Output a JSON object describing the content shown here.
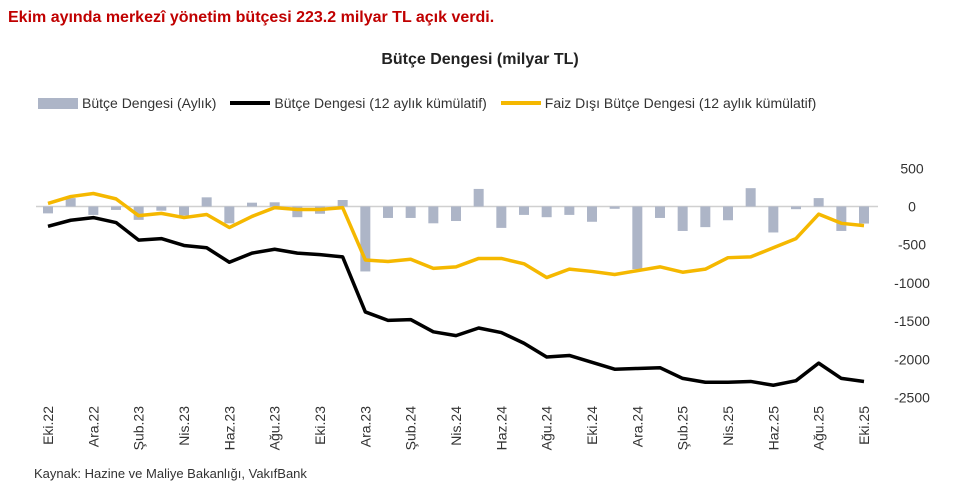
{
  "headline": "Ekim ayında merkezî yönetim bütçesi 223.2 milyar TL açık verdi.",
  "source": "Kaynak: Hazine ve Maliye Bakanlığı, VakıfBank",
  "chart_data": {
    "type": "bar+line",
    "title": "Bütçe Dengesi (milyar TL)",
    "xlabel": "",
    "ylabel": "",
    "ylim": [
      -2500,
      500
    ],
    "yticks": [
      500,
      0,
      -500,
      -1000,
      -1500,
      -2000,
      -2500
    ],
    "legend_position": "top",
    "colors": {
      "monthly": "#adb5c7",
      "cumulative": "#000000",
      "primary": "#f5b800"
    },
    "months": [
      "Eki.22",
      "Kas.22",
      "Ara.22",
      "Oca.23",
      "Şub.23",
      "Mar.23",
      "Nis.23",
      "May.23",
      "Haz.23",
      "Tem.23",
      "Ağu.23",
      "Eyl.23",
      "Eki.23",
      "Kas.23",
      "Ara.23",
      "Oca.24",
      "Şub.24",
      "Mar.24",
      "Nis.24",
      "May.24",
      "Haz.24",
      "Tem.24",
      "Ağu.24",
      "Eyl.24",
      "Eki.24",
      "Kas.24",
      "Ara.24",
      "Oca.25",
      "Şub.25",
      "Mar.25",
      "Nis.25",
      "May.25",
      "Haz.25",
      "Tem.25",
      "Ağu.25",
      "Eyl.25",
      "Eki.25"
    ],
    "tick_labels": [
      "Eki.22",
      "Ara.22",
      "Şub.23",
      "Nis.23",
      "Haz.23",
      "Ağu.23",
      "Eki.23",
      "Ara.23",
      "Şub.24",
      "Nis.24",
      "Haz.24",
      "Ağu.24",
      "Eki.24",
      "Ara.24",
      "Şub.25",
      "Nis.25",
      "Haz.25",
      "Ağu.25",
      "Eki.25"
    ],
    "series": [
      {
        "name": "Bütçe Dengesi (Aylık)",
        "type": "bar",
        "values": [
          -90,
          110,
          -110,
          -45,
          -175,
          -55,
          -120,
          120,
          -220,
          50,
          55,
          -140,
          -95,
          85,
          -850,
          -150,
          -150,
          -220,
          -190,
          230,
          -280,
          -110,
          -140,
          -110,
          -200,
          -30,
          -820,
          -150,
          -320,
          -270,
          -180,
          240,
          -340,
          -35,
          110,
          -320,
          -223.2
        ]
      },
      {
        "name": "Bütçe Dengesi (12 aylık kümülatif)",
        "type": "line",
        "values": [
          -260,
          -180,
          -145,
          -210,
          -440,
          -420,
          -510,
          -540,
          -730,
          -610,
          -560,
          -610,
          -630,
          -660,
          -1380,
          -1490,
          -1480,
          -1640,
          -1690,
          -1590,
          -1650,
          -1790,
          -1970,
          -1950,
          -2040,
          -2130,
          -2120,
          -2110,
          -2250,
          -2300,
          -2300,
          -2290,
          -2340,
          -2280,
          -2050,
          -2250,
          -2290
        ]
      },
      {
        "name": "Faiz Dışı Bütçe Dengesi (12 aylık kümülatif)",
        "type": "line",
        "values": [
          40,
          130,
          170,
          100,
          -120,
          -90,
          -145,
          -105,
          -275,
          -130,
          -15,
          -40,
          -40,
          -15,
          -700,
          -720,
          -690,
          -810,
          -790,
          -680,
          -680,
          -750,
          -930,
          -820,
          -850,
          -890,
          -840,
          -790,
          -860,
          -820,
          -670,
          -660,
          -540,
          -420,
          -100,
          -220,
          -250
        ]
      }
    ]
  }
}
